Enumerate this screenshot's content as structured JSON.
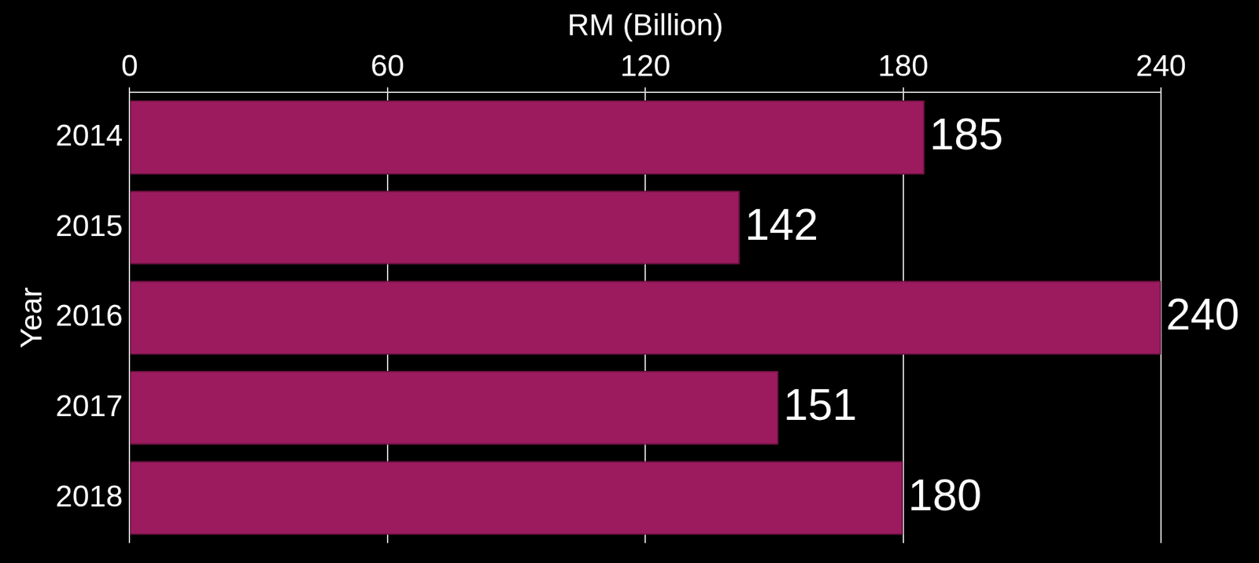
{
  "chart_data": {
    "type": "bar",
    "orientation": "horizontal",
    "xlabel": "RM (Billion)",
    "ylabel": "Year",
    "categories": [
      "2014",
      "2015",
      "2016",
      "2017",
      "2018"
    ],
    "values": [
      185,
      142,
      240,
      151,
      180
    ],
    "color": "#9b1b5e",
    "xlim": [
      0,
      240
    ],
    "xticks": [
      0,
      60,
      120,
      180,
      240
    ],
    "grid": true,
    "data_labels": true
  }
}
